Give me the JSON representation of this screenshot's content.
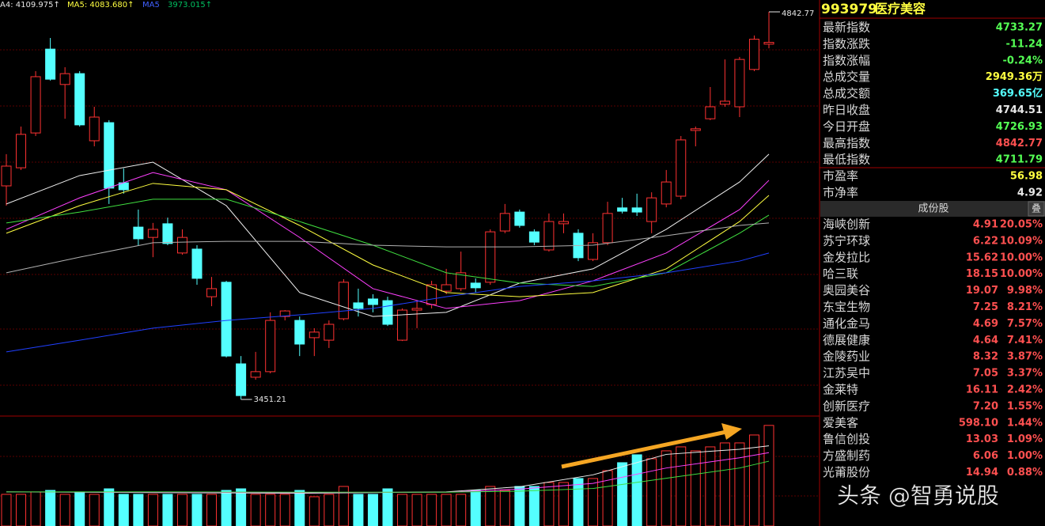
{
  "header": [
    {
      "text": "A4: 4109.975↑",
      "color": "#e8e8e8"
    },
    {
      "text": "MA5: 4083.680↑",
      "color": "#ffff40"
    },
    {
      "text": "MA5",
      "color": "#4060ff"
    },
    {
      "text": "3973.015↑",
      "color": "#00c060"
    }
  ],
  "chart_data": {
    "type": "candlestick",
    "open": [
      4218,
      4283,
      4408,
      4709,
      4582,
      4621,
      4380,
      4445,
      4229,
      4070,
      4033,
      4082,
      3977,
      3991,
      3820,
      3872,
      3579,
      3531,
      3551,
      3749,
      3735,
      3673,
      3664,
      3741,
      3798,
      3812,
      3806,
      3664,
      3772,
      3792,
      3840,
      3849,
      3869,
      3872,
      4056,
      4124,
      4053,
      3988,
      4082,
      4048,
      3954,
      4014,
      4139,
      4139,
      4090,
      4153,
      4181,
      4417,
      4459,
      4511,
      4502,
      4636,
      4726.93
    ],
    "close": [
      4289,
      4403,
      4610,
      4601,
      4621,
      4437,
      4465,
      4210,
      4204,
      4028,
      4062,
      4011,
      4033,
      3886,
      3849,
      3607,
      3465,
      3551,
      3735,
      3769,
      3650,
      3693,
      3721,
      3872,
      3778,
      3792,
      3721,
      3772,
      3778,
      3863,
      3863,
      3906,
      3852,
      4053,
      4119,
      4076,
      4016,
      4090,
      4090,
      3960,
      4014,
      4119,
      4127,
      4124,
      4175,
      4232,
      4383,
      4423,
      4502,
      4522,
      4672,
      4744.51,
      4733.27
    ],
    "high": [
      4332,
      4431,
      4630,
      4749,
      4644,
      4630,
      4502,
      4454,
      4281,
      4133,
      4085,
      4104,
      4062,
      4005,
      3891,
      3877,
      3607,
      3622,
      3764,
      3772,
      3749,
      3707,
      3735,
      3883,
      3849,
      3829,
      3820,
      3778,
      3806,
      3877,
      3920,
      3982,
      3886,
      4062,
      4153,
      4133,
      4062,
      4119,
      4119,
      4062,
      4048,
      4161,
      4175,
      4190,
      4195,
      4275,
      4397,
      4431,
      4573,
      4672,
      4681,
      4758,
      4842.77
    ],
    "low": [
      4147,
      4275,
      4397,
      4596,
      4459,
      4431,
      4360,
      4153,
      4190,
      4005,
      3962,
      4005,
      3971,
      3863,
      3786,
      3602,
      3451.21,
      3522,
      3545,
      3735,
      3607,
      3607,
      3636,
      3735,
      3749,
      3764,
      3715,
      3661,
      3707,
      3778,
      3829,
      3840,
      3835,
      3863,
      4048,
      4068,
      4005,
      3982,
      4048,
      3948,
      3948,
      4005,
      4119,
      4110,
      4048,
      4141,
      4170,
      4360,
      4454,
      4502,
      4465,
      4630,
      4711.79
    ],
    "up_color": "#ff3232",
    "down_color": "#54ffff",
    "ylim": [
      3451.21,
      4842.77
    ],
    "ma_lines": [
      {
        "color": "#f0f0f0",
        "x": [
          0,
          5,
          10,
          15,
          20,
          25,
          30,
          35,
          40,
          45,
          50,
          52
        ],
        "values": [
          4153,
          4255,
          4303,
          4147,
          3835,
          3749,
          3764,
          3869,
          3920,
          4062,
          4232,
          4332
        ]
      },
      {
        "color": "#ff40ff",
        "x": [
          0,
          5,
          10,
          15,
          20,
          25,
          30,
          35,
          40,
          45,
          50,
          52
        ],
        "values": [
          4062,
          4175,
          4266,
          4204,
          4033,
          3849,
          3778,
          3806,
          3877,
          3977,
          4133,
          4238
        ]
      },
      {
        "color": "#ffff40",
        "x": [
          0,
          5,
          10,
          15,
          20,
          25,
          30,
          35,
          40,
          45,
          50,
          52
        ],
        "values": [
          4048,
          4147,
          4227,
          4204,
          4076,
          3934,
          3835,
          3820,
          3835,
          3920,
          4090,
          4184
        ]
      },
      {
        "color": "#40e040",
        "x": [
          0,
          5,
          10,
          15,
          20,
          25,
          30,
          35,
          40,
          45,
          50,
          52
        ],
        "values": [
          4085,
          4124,
          4170,
          4170,
          4090,
          4005,
          3906,
          3869,
          3857,
          3906,
          4048,
          4113
        ]
      },
      {
        "color": "#b0b0b0",
        "x": [
          0,
          5,
          10,
          15,
          20,
          25,
          30,
          35,
          40,
          45,
          50,
          52
        ],
        "values": [
          3906,
          3962,
          4014,
          4019,
          4019,
          4005,
          3999,
          3999,
          4005,
          4039,
          4076,
          4085
        ]
      },
      {
        "color": "#2040ff",
        "x": [
          0,
          5,
          10,
          15,
          20,
          25,
          30,
          35,
          40,
          45,
          50,
          52
        ],
        "values": [
          3622,
          3664,
          3707,
          3735,
          3755,
          3778,
          3820,
          3857,
          3877,
          3906,
          3948,
          3977
        ]
      }
    ],
    "volume": {
      "values": [
        928,
        928,
        998,
        1044,
        928,
        998,
        928,
        1090,
        928,
        928,
        928,
        928,
        928,
        928,
        928,
        1044,
        1090,
        928,
        928,
        928,
        1044,
        858,
        928,
        1160,
        928,
        928,
        1090,
        928,
        928,
        928,
        928,
        928,
        1044,
        1160,
        1044,
        1160,
        1160,
        1276,
        1276,
        1392,
        1392,
        1624,
        1856,
        2088,
        1972,
        2204,
        2320,
        2204,
        2320,
        2436,
        2436,
        2668,
        2949.36
      ],
      "ylim": [
        0,
        3200
      ],
      "ma_lines": [
        {
          "color": "#f0f0f0",
          "x": [
            0,
            10,
            20,
            30,
            35,
            40,
            45,
            50,
            52
          ],
          "values": [
            1000,
            980,
            960,
            1000,
            1150,
            1500,
            2100,
            2250,
            2350
          ]
        },
        {
          "color": "#ff40ff",
          "x": [
            0,
            10,
            20,
            30,
            35,
            40,
            45,
            50,
            52
          ],
          "values": [
            1000,
            990,
            980,
            990,
            1080,
            1250,
            1700,
            2000,
            2150
          ]
        },
        {
          "color": "#40e040",
          "x": [
            0,
            10,
            20,
            30,
            35,
            40,
            45,
            50,
            52
          ],
          "values": [
            1000,
            1000,
            990,
            990,
            1020,
            1100,
            1400,
            1700,
            1900
          ]
        }
      ]
    }
  },
  "side_panel": {
    "code": "993979",
    "name": "医疗美容",
    "quote_rows": [
      {
        "label": "最新指数",
        "value": "4733.27",
        "color": "#54ff54"
      },
      {
        "label": "指数涨跌",
        "value": "-11.24",
        "color": "#54ff54"
      },
      {
        "label": "指数涨幅",
        "value": "-0.24%",
        "color": "#54ff54"
      },
      {
        "label": "总成交量",
        "value": "2949.36万",
        "color": "#ffff40"
      },
      {
        "label": "总成交额",
        "value": "369.65亿",
        "color": "#54ffff"
      },
      {
        "label": "昨日收盘",
        "value": "4744.51",
        "color": "#e8e8e8"
      },
      {
        "label": "今日开盘",
        "value": "4726.93",
        "color": "#54ff54"
      },
      {
        "label": "最高指数",
        "value": "4842.77",
        "color": "#ff5050"
      },
      {
        "label": "最低指数",
        "value": "4711.79",
        "color": "#54ff54"
      }
    ],
    "ratio_rows": [
      {
        "label": "市盈率",
        "value": "56.98",
        "color": "#ffff40"
      },
      {
        "label": "市净率",
        "value": "4.92",
        "color": "#e8e8e8"
      }
    ],
    "constituents": {
      "title": "成份股",
      "toggle": "叠",
      "rows": [
        [
          "海峡创新",
          "4.91",
          "20.05%"
        ],
        [
          "苏宁环球",
          "6.22",
          "10.09%"
        ],
        [
          "金发拉比",
          "15.62",
          "10.00%"
        ],
        [
          "哈三联",
          "18.15",
          "10.00%"
        ],
        [
          "奥园美谷",
          "19.07",
          "9.98%"
        ],
        [
          "东宝生物",
          "7.25",
          "8.21%"
        ],
        [
          "通化金马",
          "4.69",
          "7.57%"
        ],
        [
          "德展健康",
          "4.64",
          "7.41%"
        ],
        [
          "金陵药业",
          "8.32",
          "3.87%"
        ],
        [
          "江苏吴中",
          "7.05",
          "3.37%"
        ],
        [
          "金莱特",
          "16.11",
          "2.42%"
        ],
        [
          "创新医疗",
          "7.20",
          "1.55%"
        ],
        [
          "爱美客",
          "598.10",
          "1.44%"
        ],
        [
          "鲁信创投",
          "13.03",
          "1.09%"
        ],
        [
          "方盛制药",
          "6.06",
          "1.00%"
        ],
        [
          "光莆股份",
          "14.94",
          "0.88%"
        ]
      ]
    }
  },
  "watermark": "头条 @智勇说股"
}
